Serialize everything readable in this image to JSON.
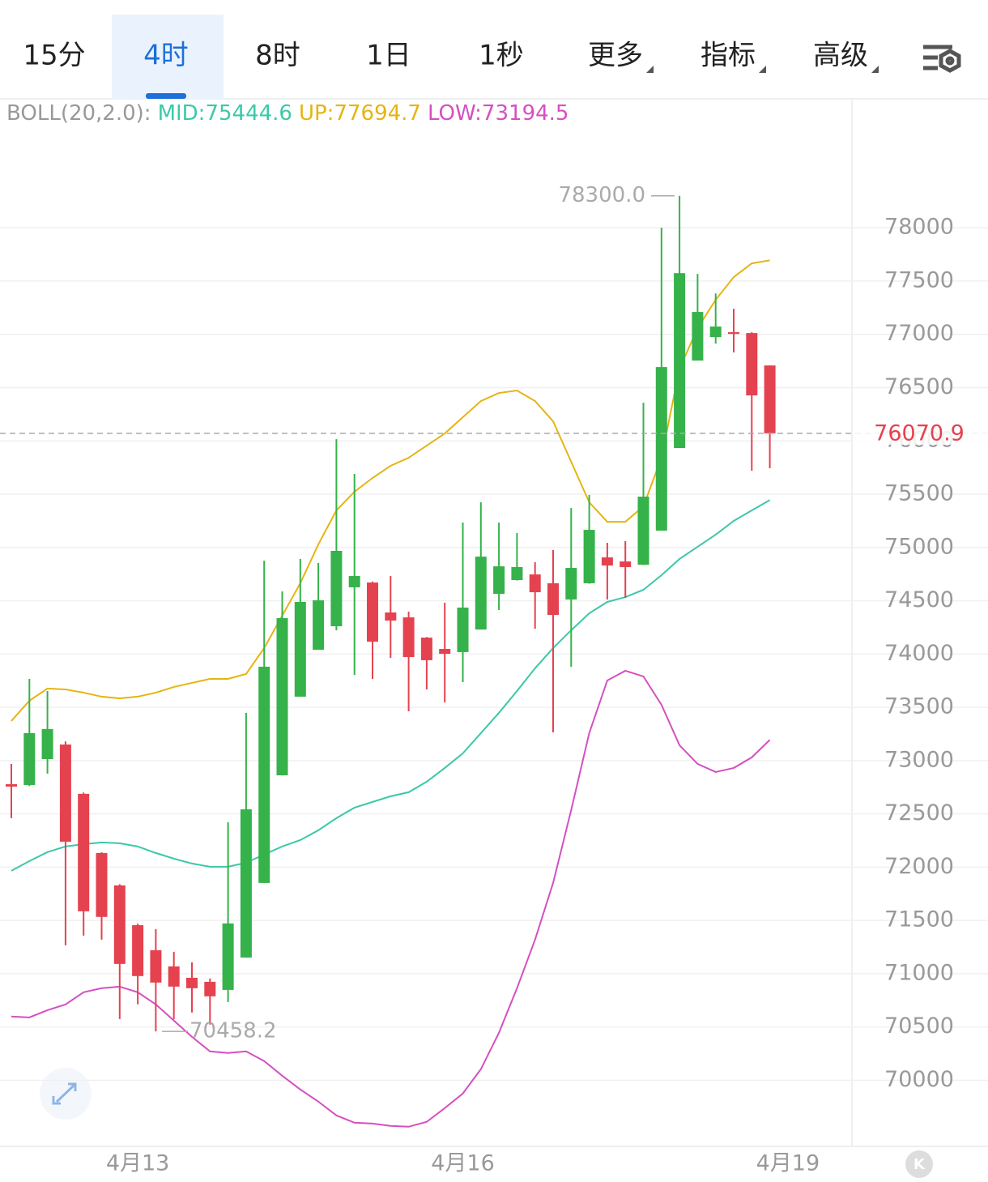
{
  "toolbar": {
    "tabs": [
      "15分",
      "4时",
      "8时",
      "1日",
      "1秒",
      "更多",
      "指标",
      "高级"
    ],
    "selected": 1,
    "dropdown_tabs": [
      5,
      6,
      7
    ]
  },
  "chart_data": {
    "type": "candlestick",
    "indicator_label": "BOLL(20,2.0):",
    "categories": [
      null,
      null,
      null,
      null,
      null,
      null,
      null,
      "4月13",
      null,
      null,
      null,
      null,
      null,
      null,
      null,
      null,
      null,
      null,
      null,
      null,
      null,
      null,
      null,
      null,
      null,
      "4月16",
      null,
      null,
      null,
      null,
      null,
      null,
      null,
      null,
      null,
      null,
      null,
      null,
      null,
      null,
      null,
      null,
      null,
      "4月19"
    ],
    "open": [
      72779,
      72771,
      73014,
      73151,
      72688,
      72133,
      71829,
      71456,
      71221,
      71069,
      70962,
      70924,
      70848,
      71152,
      71852,
      72862,
      73600,
      74040,
      74261,
      74626,
      74671,
      74390,
      74344,
      74154,
      74048,
      74018,
      74230,
      74565,
      74694,
      74747,
      74664,
      74512,
      74664,
      74907,
      74869,
      74838,
      75158,
      75933,
      76754,
      76974,
      77020,
      77012,
      76708,
      null
    ],
    "high": [
      72969,
      73767,
      73653,
      73180,
      72700,
      72140,
      71840,
      71470,
      71418,
      71206,
      71107,
      70955,
      72422,
      73448,
      74876,
      74588,
      74892,
      74854,
      76016,
      75690,
      74680,
      74732,
      74398,
      74160,
      74481,
      75234,
      75424,
      75234,
      75135,
      74861,
      74975,
      75370,
      75492,
      75044,
      75059,
      76358,
      78000,
      78300,
      77567,
      77384,
      77240,
      77020,
      76710,
      null
    ],
    "low": [
      72460,
      72760,
      72878,
      71266,
      71358,
      71320,
      70575,
      70712,
      70458.2,
      70575,
      70636,
      70522,
      70734,
      71150,
      71850,
      72860,
      73600,
      74040,
      74223,
      73805,
      73767,
      73964,
      73463,
      73668,
      73546,
      73736,
      74230,
      74413,
      74690,
      74238,
      73265,
      73881,
      74660,
      74512,
      74527,
      74836,
      75158,
      75933,
      76754,
      76913,
      76830,
      75720,
      75743,
      null
    ],
    "close": [
      72756,
      73258,
      73296,
      72239,
      71586,
      71533,
      71092,
      70978,
      70917,
      70879,
      70864,
      70788,
      71472,
      72543,
      73881,
      74337,
      74489,
      74504,
      74968,
      74732,
      74116,
      74314,
      73972,
      73942,
      74002,
      74436,
      74914,
      74823,
      74816,
      74580,
      74367,
      74808,
      75165,
      74831,
      74816,
      75477,
      76693,
      77574,
      77210,
      77073,
      77004,
      76427,
      76070.9,
      null
    ],
    "up_color": "#35b24a",
    "down_color": "#e5424f",
    "series": [
      {
        "name": "MID:75444.6",
        "color": "#3cc8a8",
        "values": [
          71966,
          72057,
          72141,
          72194,
          72216,
          72232,
          72224,
          72194,
          72133,
          72080,
          72034,
          72004,
          72004,
          72042,
          72118,
          72194,
          72254,
          72346,
          72460,
          72558,
          72612,
          72665,
          72703,
          72802,
          72931,
          73068,
          73258,
          73448,
          73653,
          73866,
          74056,
          74223,
          74382,
          74489,
          74534,
          74603,
          74740,
          74892,
          75006,
          75120,
          75249,
          75348,
          75444.6,
          null
        ]
      },
      {
        "name": "UP:77694.7",
        "color": "#e6b412",
        "values": [
          73372,
          73562,
          73676,
          73668,
          73638,
          73600,
          73584,
          73600,
          73638,
          73691,
          73729,
          73767,
          73767,
          73813,
          74056,
          74360,
          74664,
          75029,
          75348,
          75523,
          75652,
          75766,
          75842,
          75956,
          76070,
          76222,
          76374,
          76450,
          76473,
          76374,
          76184,
          75804,
          75424,
          75241,
          75241,
          75386,
          75842,
          76678,
          77058,
          77324,
          77537,
          77666,
          77694.7,
          null
        ]
      },
      {
        "name": "LOW:73194.5",
        "color": "#d64fc0",
        "values": [
          70598,
          70590,
          70658,
          70712,
          70826,
          70864,
          70879,
          70826,
          70712,
          70560,
          70408,
          70271,
          70256,
          70271,
          70180,
          70043,
          69914,
          69800,
          69670,
          69602,
          69594,
          69572,
          69564,
          69610,
          69739,
          69876,
          70104,
          70446,
          70864,
          71320,
          71852,
          72536,
          73258,
          73752,
          73843,
          73790,
          73524,
          73144,
          72969,
          72893,
          72931,
          73030,
          73194.5,
          null
        ]
      }
    ],
    "ylim": [
      69380,
      79210
    ],
    "yticks": [
      70000,
      70500,
      71000,
      71500,
      72000,
      72500,
      73000,
      73500,
      74000,
      74500,
      75000,
      75500,
      76000,
      76500,
      77000,
      77500,
      78000
    ],
    "grid": true,
    "current_price": 76070.9,
    "high_marker": {
      "value": 78300,
      "label": "78300.0"
    },
    "low_marker": {
      "value": 70458.2,
      "label": "70458.2"
    }
  },
  "corner_button": "K"
}
